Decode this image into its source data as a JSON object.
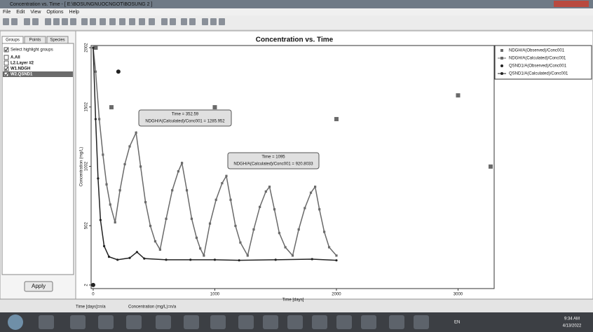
{
  "window_title": "Concentration vs. Time - [ E:\\BOSUNGNUOCNGOT\\BOSUNG 2 ]",
  "menu": [
    "File",
    "Edit",
    "View",
    "Options",
    "Help"
  ],
  "panel": {
    "tabs": [
      "Groups",
      "Points",
      "Species"
    ],
    "select_label": "Select highlight groups",
    "select_checked": true,
    "groups": [
      {
        "label": "A.All",
        "checked": false
      },
      {
        "label": "L2.Layer #2",
        "checked": false
      },
      {
        "label": "W1.NDGH",
        "checked": true
      },
      {
        "label": "W2.QSND1",
        "checked": true
      }
    ],
    "apply": "Apply"
  },
  "status": [
    "Time [days]=n/a",
    "Concentration (mg/L)=n/a"
  ],
  "taskbar": {
    "lang": "EN",
    "time": "9:34 AM",
    "date": "4/13/2022"
  },
  "chart_data": {
    "type": "line",
    "title": "Concentration vs. Time",
    "x_label": "Time [days]",
    "y_label": "Concentration (mg/L)",
    "xlim": [
      -17,
      3297
    ],
    "ylim": [
      -28,
      2020
    ],
    "xticks": [
      0,
      1000,
      2000,
      3000
    ],
    "yticks": [
      2,
      502,
      1002,
      1502,
      2002
    ],
    "series": [
      {
        "name": "NDGH/A(Observed)/Conc001",
        "color": "#6a6a6a",
        "mode": "markers",
        "marker": "square",
        "x": [
          20,
          150,
          1000,
          2000,
          3000,
          3268
        ],
        "values": [
          2002,
          1500,
          1500,
          1400,
          1600,
          1000
        ]
      },
      {
        "name": "NDGH/A(Calculated)/Conc001",
        "color": "#6a6a6a",
        "mode": "lines+markers",
        "marker": "square",
        "x": [
          0,
          20,
          50,
          80,
          110,
          140,
          180,
          220,
          260,
          300,
          352.59,
          390,
          430,
          470,
          510,
          550,
          600,
          650,
          700,
          730,
          770,
          810,
          850,
          880,
          910,
          960,
          1010,
          1060,
          1095,
          1130,
          1170,
          1210,
          1270,
          1320,
          1370,
          1420,
          1450,
          1490,
          1530,
          1580,
          1640,
          1690,
          1740,
          1790,
          1825,
          1860,
          1900,
          1940,
          2000
        ],
        "values": [
          2002,
          1800,
          1400,
          1100,
          850,
          680,
          530,
          800,
          1020,
          1170,
          1285.952,
          1000,
          700,
          500,
          370,
          300,
          560,
          800,
          960,
          1030,
          800,
          560,
          400,
          310,
          250,
          520,
          720,
          860,
          920.8033,
          720,
          500,
          360,
          250,
          470,
          660,
          790,
          830,
          640,
          440,
          320,
          250,
          470,
          650,
          780,
          830,
          640,
          450,
          320,
          250
        ]
      },
      {
        "name": "QSND1/A(Observed)/Conc001",
        "color": "#222222",
        "mode": "markers",
        "marker": "circle",
        "x": [
          0,
          207
        ],
        "values": [
          2,
          1800
        ]
      },
      {
        "name": "QSND1/A(Calculated)/Conc001",
        "color": "#222222",
        "mode": "lines+markers",
        "marker": "circle",
        "x": [
          0,
          20,
          40,
          60,
          90,
          130,
          200,
          300,
          360,
          420,
          600,
          800,
          1000,
          1200,
          1500,
          1800,
          2000
        ],
        "values": [
          2002,
          1400,
          900,
          550,
          330,
          240,
          215,
          230,
          280,
          225,
          215,
          215,
          215,
          210,
          215,
          220,
          210
        ]
      }
    ],
    "annotations": [
      {
        "lines": [
          "Time = 352.59",
          "NDGH/A(Calculated)/Conc001 = 1285.952"
        ]
      },
      {
        "lines": [
          "Time = 1095",
          "NDGH/A(Calculated)/Conc001 = 920.8033"
        ]
      }
    ]
  }
}
